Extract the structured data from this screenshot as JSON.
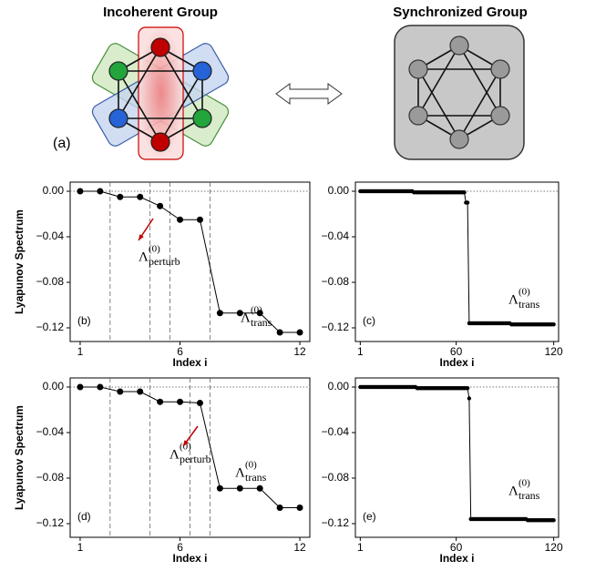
{
  "diagram": {
    "label": "(a)",
    "left_title": "Incoherent Group",
    "right_title": "Synchronized Group"
  },
  "chart_data": [
    {
      "type": "line",
      "label": "(b)",
      "xlabel": "Index i",
      "ylabel": "Lyapunov Spectrum",
      "color": "#000000",
      "x": [
        1,
        2,
        3,
        4,
        5,
        6,
        7,
        8,
        9,
        10,
        11,
        12
      ],
      "values": [
        0,
        0,
        -0.005,
        -0.005,
        -0.013,
        -0.025,
        -0.025,
        -0.107,
        -0.107,
        -0.107,
        -0.124,
        -0.124
      ],
      "xlim": [
        0.5,
        12.5
      ],
      "ylim": [
        -0.132,
        0.008
      ],
      "xticks": [
        1,
        6,
        12
      ],
      "yticks": [
        {
          "value": 0,
          "label": "0.00"
        },
        {
          "value": -0.04,
          "label": "−0.04"
        },
        {
          "value": -0.08,
          "label": "−0.08"
        },
        {
          "value": -0.12,
          "label": "−0.12"
        }
      ],
      "vlines": [
        2.5,
        4.5,
        5.5,
        7.5
      ],
      "hline": 0,
      "annotations": [
        {
          "base": "Λ",
          "sup": "(0)",
          "sub": "perturb"
        },
        {
          "base": "Λ",
          "sup": "(0)",
          "sub": "trans"
        }
      ]
    },
    {
      "type": "line",
      "label": "(c)",
      "xlabel": "Index i",
      "color": "#000000",
      "x": [
        1,
        2,
        3,
        4,
        5,
        6,
        7,
        8,
        9,
        10,
        11,
        12,
        13,
        14,
        15,
        16,
        17,
        18,
        19,
        20,
        21,
        22,
        23,
        24,
        25,
        26,
        27,
        28,
        29,
        30,
        31,
        32,
        33,
        34,
        35,
        36,
        37,
        38,
        39,
        40,
        41,
        42,
        43,
        44,
        45,
        46,
        47,
        48,
        49,
        50,
        51,
        52,
        53,
        54,
        55,
        56,
        57,
        58,
        59,
        60,
        61,
        62,
        63,
        64,
        65,
        66,
        67,
        68,
        69,
        70,
        71,
        72,
        73,
        74,
        75,
        76,
        77,
        78,
        79,
        80,
        81,
        82,
        83,
        84,
        85,
        86,
        87,
        88,
        89,
        90,
        91,
        92,
        93,
        94,
        95,
        96,
        97,
        98,
        99,
        100,
        101,
        102,
        103,
        104,
        105,
        106,
        107,
        108,
        109,
        110,
        111,
        112,
        113,
        114,
        115,
        116,
        117,
        118,
        119,
        120
      ],
      "values": [
        0,
        0,
        0,
        0,
        0,
        0,
        0,
        0,
        0,
        0,
        0,
        0,
        0,
        0,
        0,
        0,
        0,
        0,
        0,
        0,
        0,
        0,
        0,
        0,
        0,
        0,
        0,
        0,
        0,
        0,
        0,
        0,
        0,
        -0.001,
        -0.001,
        -0.001,
        -0.001,
        -0.001,
        -0.001,
        -0.001,
        -0.001,
        -0.001,
        -0.001,
        -0.001,
        -0.001,
        -0.001,
        -0.001,
        -0.001,
        -0.001,
        -0.001,
        -0.001,
        -0.001,
        -0.001,
        -0.001,
        -0.001,
        -0.001,
        -0.001,
        -0.001,
        -0.001,
        -0.001,
        -0.001,
        -0.001,
        -0.001,
        -0.001,
        -0.001,
        -0.01,
        -0.01,
        -0.116,
        -0.116,
        -0.116,
        -0.116,
        -0.116,
        -0.116,
        -0.116,
        -0.116,
        -0.116,
        -0.116,
        -0.116,
        -0.116,
        -0.116,
        -0.116,
        -0.116,
        -0.116,
        -0.116,
        -0.116,
        -0.116,
        -0.116,
        -0.116,
        -0.116,
        -0.116,
        -0.116,
        -0.116,
        -0.116,
        -0.117,
        -0.117,
        -0.117,
        -0.117,
        -0.117,
        -0.117,
        -0.117,
        -0.117,
        -0.117,
        -0.117,
        -0.117,
        -0.117,
        -0.117,
        -0.117,
        -0.117,
        -0.117,
        -0.117,
        -0.117,
        -0.117,
        -0.117,
        -0.117,
        -0.117,
        -0.117,
        -0.117,
        -0.117,
        -0.117,
        -0.117
      ],
      "xlim": [
        -2,
        123
      ],
      "ylim": [
        -0.132,
        0.008
      ],
      "xticks": [
        1,
        60,
        120
      ],
      "yticks": [
        {
          "value": 0,
          "label": "0.00"
        },
        {
          "value": -0.04,
          "label": "−0.04"
        },
        {
          "value": -0.08,
          "label": "−0.08"
        },
        {
          "value": -0.12,
          "label": "−0.12"
        }
      ],
      "hline": 0,
      "annotations": [
        {
          "base": "Λ",
          "sup": "(0)",
          "sub": "trans"
        }
      ]
    },
    {
      "type": "line",
      "label": "(d)",
      "ylabel": "Lyapunov Spectrum",
      "color": "#000000",
      "x": [
        1,
        2,
        3,
        4,
        5,
        6,
        7,
        8,
        9,
        10,
        11,
        12
      ],
      "values": [
        0,
        0,
        -0.004,
        -0.004,
        -0.013,
        -0.013,
        -0.014,
        -0.089,
        -0.089,
        -0.089,
        -0.106,
        -0.106
      ],
      "xlim": [
        0.5,
        12.5
      ],
      "ylim": [
        -0.132,
        0.008
      ],
      "xticks": [
        1,
        6,
        12
      ],
      "yticks": [
        {
          "value": 0,
          "label": "0.00"
        },
        {
          "value": -0.04,
          "label": "−0.04"
        },
        {
          "value": -0.08,
          "label": "−0.08"
        },
        {
          "value": -0.12,
          "label": "−0.12"
        }
      ],
      "vlines": [
        2.5,
        4.5,
        6.5,
        7.5
      ],
      "hline": 0,
      "xlabel": "Index i",
      "annotations": [
        {
          "base": "Λ",
          "sup": "(0)",
          "sub": "perturb"
        },
        {
          "base": "Λ",
          "sup": "(0)",
          "sub": "trans"
        }
      ]
    },
    {
      "type": "line",
      "label": "(e)",
      "xlabel": "Index i",
      "color": "#000000",
      "x": [
        1,
        2,
        3,
        4,
        5,
        6,
        7,
        8,
        9,
        10,
        11,
        12,
        13,
        14,
        15,
        16,
        17,
        18,
        19,
        20,
        21,
        22,
        23,
        24,
        25,
        26,
        27,
        28,
        29,
        30,
        31,
        32,
        33,
        34,
        35,
        36,
        37,
        38,
        39,
        40,
        41,
        42,
        43,
        44,
        45,
        46,
        47,
        48,
        49,
        50,
        51,
        52,
        53,
        54,
        55,
        56,
        57,
        58,
        59,
        60,
        61,
        62,
        63,
        64,
        65,
        66,
        67,
        68,
        69,
        70,
        71,
        72,
        73,
        74,
        75,
        76,
        77,
        78,
        79,
        80,
        81,
        82,
        83,
        84,
        85,
        86,
        87,
        88,
        89,
        90,
        91,
        92,
        93,
        94,
        95,
        96,
        97,
        98,
        99,
        100,
        101,
        102,
        103,
        104,
        105,
        106,
        107,
        108,
        109,
        110,
        111,
        112,
        113,
        114,
        115,
        116,
        117,
        118,
        119,
        120
      ],
      "values": [
        0,
        0,
        0,
        0,
        0,
        0,
        0,
        0,
        0,
        0,
        0,
        0,
        0,
        0,
        0,
        0,
        0,
        0,
        0,
        0,
        0,
        0,
        0,
        0,
        0,
        0,
        0,
        0,
        0,
        0,
        0,
        0,
        0,
        0,
        0,
        -0.001,
        -0.001,
        -0.001,
        -0.001,
        -0.001,
        -0.001,
        -0.001,
        -0.001,
        -0.001,
        -0.001,
        -0.001,
        -0.001,
        -0.001,
        -0.001,
        -0.001,
        -0.001,
        -0.001,
        -0.001,
        -0.001,
        -0.001,
        -0.001,
        -0.001,
        -0.001,
        -0.001,
        -0.001,
        -0.001,
        -0.001,
        -0.001,
        -0.001,
        -0.001,
        -0.001,
        -0.001,
        -0.01,
        -0.116,
        -0.116,
        -0.116,
        -0.116,
        -0.116,
        -0.116,
        -0.116,
        -0.116,
        -0.116,
        -0.116,
        -0.116,
        -0.116,
        -0.116,
        -0.116,
        -0.116,
        -0.116,
        -0.116,
        -0.116,
        -0.116,
        -0.116,
        -0.116,
        -0.116,
        -0.116,
        -0.116,
        -0.116,
        -0.116,
        -0.116,
        -0.116,
        -0.116,
        -0.116,
        -0.116,
        -0.116,
        -0.116,
        -0.116,
        -0.116,
        -0.117,
        -0.117,
        -0.117,
        -0.117,
        -0.117,
        -0.117,
        -0.117,
        -0.117,
        -0.117,
        -0.117,
        -0.117,
        -0.117,
        -0.117,
        -0.117,
        -0.117,
        -0.117,
        -0.117
      ],
      "xlim": [
        -2,
        123
      ],
      "ylim": [
        -0.132,
        0.008
      ],
      "xticks": [
        1,
        60,
        120
      ],
      "yticks": [
        {
          "value": 0,
          "label": "0.00"
        },
        {
          "value": -0.04,
          "label": "−0.04"
        },
        {
          "value": -0.08,
          "label": "−0.08"
        },
        {
          "value": -0.12,
          "label": "−0.12"
        }
      ],
      "hline": 0,
      "annotations": [
        {
          "base": "Λ",
          "sup": "(0)",
          "sub": "trans"
        }
      ]
    }
  ]
}
